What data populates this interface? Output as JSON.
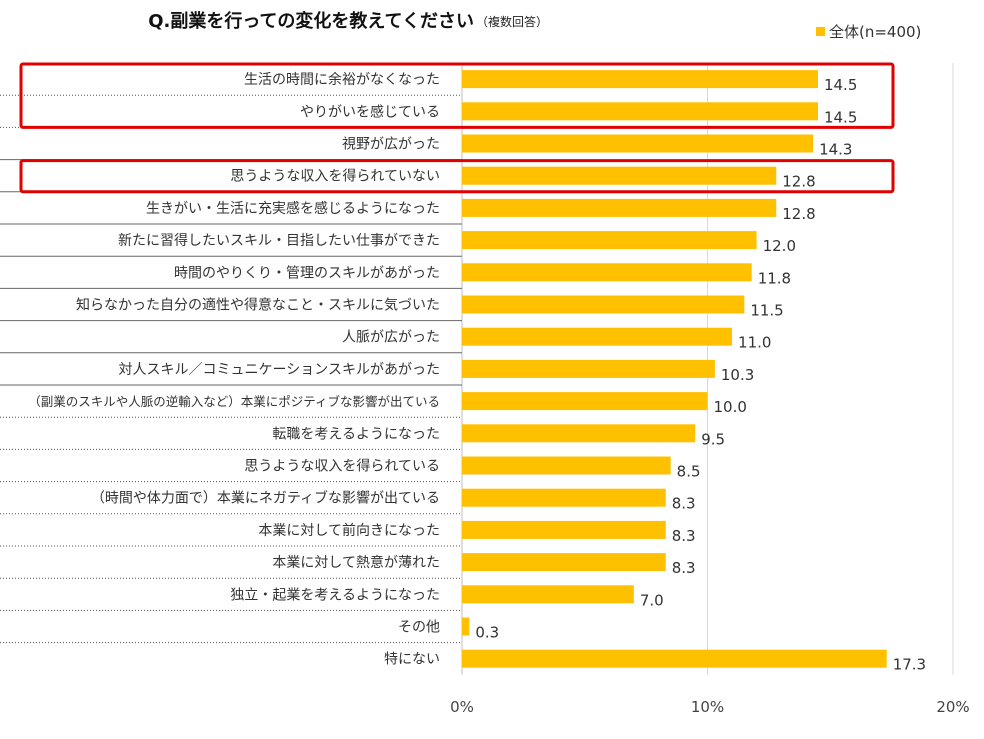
{
  "chart_data": {
    "type": "bar",
    "orientation": "horizontal",
    "title": "Q.副業を行っての変化を教えてください",
    "subtitle": "（複数回答）",
    "legend": {
      "label": "全体(n=400)",
      "position": "top-right"
    },
    "categories": [
      "生活の時間に余裕がなくなった",
      "やりがいを感じている",
      "視野が広がった",
      "思うような収入を得られていない",
      "生きがい・生活に充実感を感じるようになった",
      "新たに習得したいスキル・目指したい仕事ができた",
      "時間のやりくり・管理のスキルがあがった",
      "知らなかった自分の適性や得意なこと・スキルに気づいた",
      "人脈が広がった",
      "対人スキル／コミュニケーションスキルがあがった",
      "（副業のスキルや人脈の逆輸入など）本業にポジティブな影響が出ている",
      "転職を考えるようになった",
      "思うような収入を得られている",
      "（時間や体力面で）本業にネガティブな影響が出ている",
      "本業に対して前向きになった",
      "本業に対して熱意が薄れた",
      "独立・起業を考えるようになった",
      "その他",
      "特にない"
    ],
    "series": [
      {
        "name": "全体(n=400)",
        "values": [
          14.5,
          14.5,
          14.3,
          12.8,
          12.8,
          12.0,
          11.8,
          11.5,
          11.0,
          10.3,
          10.0,
          9.5,
          8.5,
          8.3,
          8.3,
          8.3,
          7.0,
          0.3,
          17.3
        ]
      }
    ],
    "value_labels": [
      "14.5",
      "14.5",
      "14.3",
      "12.8",
      "12.8",
      "12.0",
      "11.8",
      "11.5",
      "11.0",
      "10.3",
      "10.0",
      "9.5",
      "8.5",
      "8.3",
      "8.3",
      "8.3",
      "7.0",
      "0.3",
      "17.3"
    ],
    "xlim": [
      0,
      20
    ],
    "x_ticks": [
      "0%",
      "10%",
      "20%"
    ],
    "x_tick_values": [
      0,
      10,
      20
    ],
    "grid": true,
    "highlighted_categories": [
      [
        0,
        1
      ],
      [
        3,
        3
      ]
    ],
    "colors": {
      "bar": "#FFC000",
      "highlight": "#E00000",
      "grid": "#D9D9D9"
    }
  }
}
